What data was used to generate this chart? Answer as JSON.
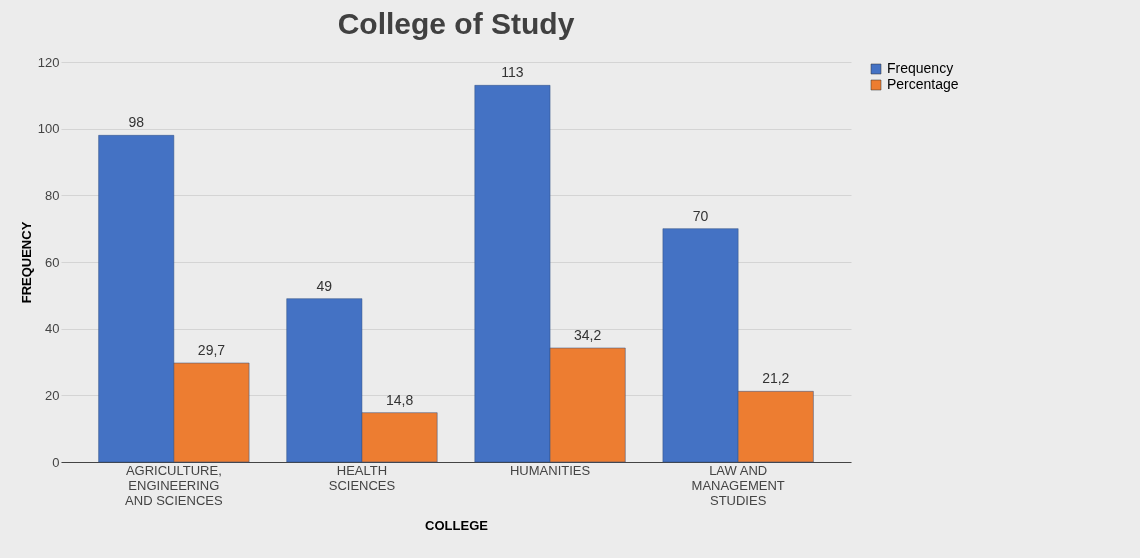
{
  "chart_data": {
    "type": "bar",
    "title": "College of Study",
    "xlabel": "COLLEGE",
    "ylabel": "FREQUENCY",
    "categories": [
      "AGRICULTURE, ENGINEERING AND SCIENCES",
      "HEALTH SCIENCES",
      "HUMANITIES",
      "LAW AND MANAGEMENT STUDIES"
    ],
    "series": [
      {
        "name": "Frequency",
        "color": "#4472c4",
        "values": [
          98,
          49,
          113,
          70
        ],
        "value_labels": [
          "98",
          "49",
          "113",
          "70"
        ]
      },
      {
        "name": "Percentage",
        "color": "#ed7d31",
        "values": [
          29.7,
          14.8,
          34.2,
          21.2
        ],
        "value_labels": [
          "29,7",
          "14,8",
          "34,2",
          "21,2"
        ]
      }
    ],
    "ylim": [
      0,
      120
    ],
    "yticks": [
      0,
      20,
      40,
      60,
      80,
      100,
      120
    ],
    "grid": "y",
    "legend": "right"
  }
}
